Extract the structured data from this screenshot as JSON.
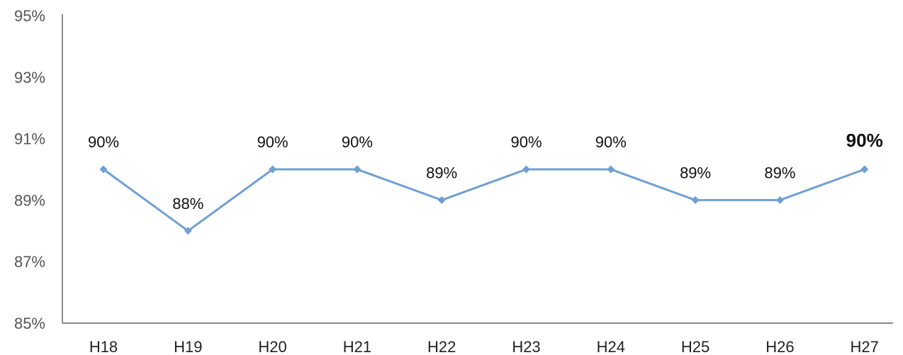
{
  "chart_data": {
    "type": "line",
    "title": "",
    "xlabel": "",
    "ylabel": "",
    "categories": [
      "H18",
      "H19",
      "H20",
      "H21",
      "H22",
      "H23",
      "H24",
      "H25",
      "H26",
      "H27"
    ],
    "series": [
      {
        "values": [
          90,
          88,
          90,
          90,
          89,
          90,
          90,
          89,
          89,
          90
        ],
        "labels": [
          "90%",
          "88%",
          "90%",
          "90%",
          "89%",
          "90%",
          "90%",
          "89%",
          "89%",
          "90%"
        ],
        "color": "#6f9fd2",
        "marker": "diamond"
      }
    ],
    "ylim": [
      85,
      95
    ],
    "yticks": [
      85,
      87,
      89,
      91,
      93,
      95
    ],
    "ytick_labels": [
      "85%",
      "87%",
      "89%",
      "91%",
      "93%",
      "95%"
    ],
    "grid": false,
    "legend": "none",
    "emphasized_label": "H27"
  }
}
